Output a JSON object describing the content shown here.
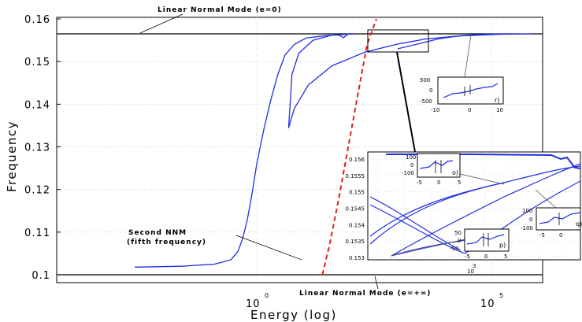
{
  "chart_data": {
    "type": "line",
    "xlabel": "Energy (log)",
    "ylabel": "Frequency",
    "xscale": "log",
    "ylim": [
      0.1,
      0.16
    ],
    "x_ticks": [
      {
        "base": "10",
        "exp": "0"
      },
      {
        "base": "10",
        "exp": "5"
      }
    ],
    "y_ticks": [
      "0.1",
      "0.11",
      "0.12",
      "0.13",
      "0.14",
      "0.15",
      "0.16"
    ],
    "grid": true,
    "series": [
      {
        "color": "#1f2fe0",
        "x": [
          -2.6,
          -1.6,
          -0.9,
          -0.55,
          -0.4,
          -0.3,
          -0.2,
          -0.1,
          0.0,
          0.15,
          0.3,
          0.45,
          0.6,
          0.8,
          1.05,
          1.4,
          1.6,
          1.75,
          1.85,
          1.95,
          2.1
        ],
        "y": [
          0.1018,
          0.102,
          0.1025,
          0.1035,
          0.1055,
          0.1085,
          0.113,
          0.119,
          0.126,
          0.134,
          0.141,
          0.147,
          0.1515,
          0.154,
          0.1555,
          0.156,
          0.1562,
          0.1562,
          0.1556,
          0.1565,
          0.1565
        ]
      },
      {
        "color": "#1f2fe0",
        "x": [
          2.1,
          1.6,
          1.2,
          0.9,
          0.75,
          0.68,
          0.8,
          1.1,
          1.6,
          2.3,
          3.0,
          3.6,
          4.3,
          5.2,
          5.9
        ],
        "y": [
          0.1565,
          0.1562,
          0.155,
          0.152,
          0.147,
          0.1345,
          0.139,
          0.1445,
          0.149,
          0.1522,
          0.1541,
          0.1553,
          0.156,
          0.1564,
          0.1565
        ]
      },
      {
        "color": "#1f2fe0",
        "x": [
          3.0,
          3.5,
          3.9,
          4.3,
          4.6,
          4.9,
          5.3
        ],
        "y": [
          0.153,
          0.1543,
          0.1554,
          0.156,
          0.1563,
          0.1564,
          0.1565
        ]
      }
    ],
    "nnm_curve": {
      "color": "#e02020",
      "style": "dashed",
      "x": [
        1.4,
        1.55,
        1.75,
        1.95,
        2.15,
        2.35,
        2.55
      ],
      "y": [
        0.1,
        0.107,
        0.118,
        0.13,
        0.142,
        0.154,
        0.16
      ]
    },
    "reference_lines": [
      {
        "y": 0.1565,
        "label": "Linear Normal Mode (e=0)"
      },
      {
        "y": 0.1018,
        "label": "Linear Normal Mode (e=+∞)"
      }
    ],
    "annotations": {
      "second_nnm_line1": "Second NNM",
      "second_nnm_line2": "(fifth frequency)"
    },
    "zoom_inset": {
      "y_ticks": [
        "0.153",
        "0.1535",
        "0.154",
        "0.1545",
        "0.155",
        "0.1555",
        "0.156"
      ],
      "x_tick_base": "10",
      "x_tick_exp": "3"
    },
    "small_insets": [
      {
        "label": "r)",
        "y_ticks": [
          "500",
          "0",
          "-500"
        ],
        "x_ticks": [
          "-10",
          "0",
          "10"
        ]
      },
      {
        "label": "o)",
        "y_ticks": [
          "100",
          "0",
          "-100"
        ],
        "x_ticks": [
          "-5",
          "0",
          "5"
        ]
      },
      {
        "label": "q)",
        "y_ticks": [
          "100",
          "0",
          "-100"
        ],
        "x_ticks": [
          "-5",
          "0"
        ]
      },
      {
        "label": "p)",
        "y_ticks": [
          "50",
          "0",
          "-50"
        ],
        "x_ticks": [
          "-5",
          "0",
          "5"
        ]
      }
    ]
  }
}
